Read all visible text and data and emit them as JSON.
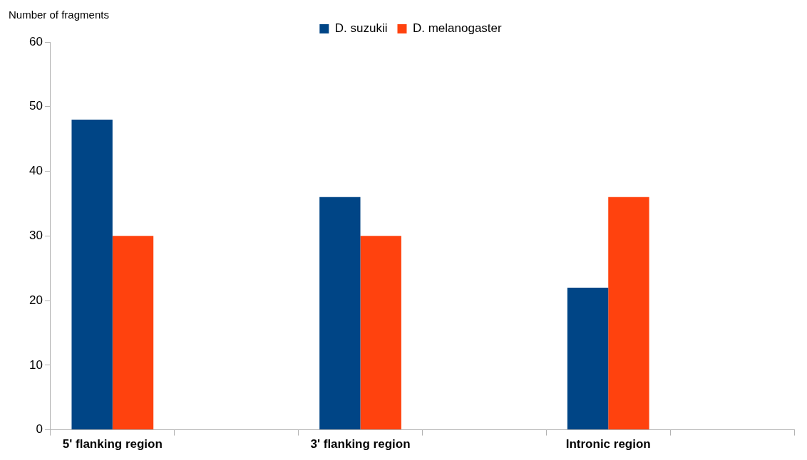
{
  "chart_data": {
    "type": "bar",
    "ylabel": "Number of fragments",
    "categories": [
      "5' flanking region",
      null,
      "3' flanking region",
      null,
      "Intronic region",
      null
    ],
    "series": [
      {
        "name": "D. suzukii",
        "color": "#004586",
        "values": [
          48,
          null,
          36,
          null,
          22,
          null
        ]
      },
      {
        "name": "D. melanogaster",
        "color": "#ff420e",
        "values": [
          30,
          null,
          30,
          null,
          36,
          null
        ]
      }
    ],
    "ylim": [
      0,
      60
    ],
    "yticks": [
      0,
      10,
      20,
      30,
      40,
      50,
      60
    ],
    "grid": false,
    "legend": "top"
  }
}
